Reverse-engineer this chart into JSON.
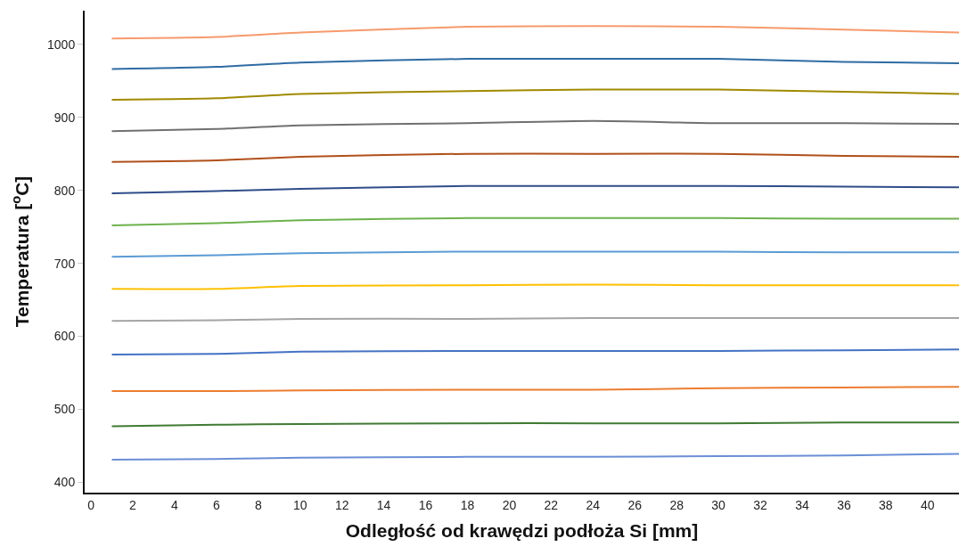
{
  "chart_data": {
    "type": "line",
    "xlabel": "Odległość od krawędzi podłoża Si [mm]",
    "ylabel": "Temperatura [$^{o}$C]",
    "x": [
      1,
      6,
      10,
      18,
      24,
      30,
      36,
      41.5
    ],
    "xlim": [
      -0.3,
      41.5
    ],
    "xticks": [
      0,
      2,
      4,
      6,
      8,
      10,
      12,
      14,
      16,
      18,
      20,
      22,
      24,
      26,
      28,
      30,
      32,
      34,
      36,
      38,
      40
    ],
    "ylim": [
      386,
      1046
    ],
    "yticks": [
      400,
      500,
      600,
      700,
      800,
      900,
      1000
    ],
    "grid": false,
    "marker": "none",
    "line_style": "solid",
    "series": [
      {
        "color": "#f79a6b",
        "values": [
          1008,
          1010,
          1016,
          1024,
          1025,
          1024,
          1020,
          1016
        ]
      },
      {
        "color": "#2e6ca4",
        "values": [
          966,
          969,
          975,
          980,
          980,
          980,
          976,
          974
        ]
      },
      {
        "color": "#a08a00",
        "values": [
          924,
          926,
          932,
          936,
          938,
          938,
          935,
          932
        ]
      },
      {
        "color": "#707070",
        "values": [
          881,
          884,
          889,
          892,
          895,
          892,
          892,
          891
        ]
      },
      {
        "color": "#b0501a",
        "values": [
          839,
          841,
          846,
          850,
          850,
          850,
          847,
          846
        ]
      },
      {
        "color": "#2f4d8a",
        "values": [
          796,
          799,
          802,
          806,
          806,
          806,
          805,
          804
        ]
      },
      {
        "color": "#6db24d",
        "values": [
          752,
          755,
          759,
          762,
          762,
          762,
          761,
          761
        ]
      },
      {
        "color": "#5b9bd5",
        "values": [
          709,
          711,
          714,
          716,
          716,
          716,
          715,
          715
        ]
      },
      {
        "color": "#ffc000",
        "values": [
          665,
          665,
          669,
          670,
          671,
          670,
          670,
          670
        ]
      },
      {
        "color": "#a5a5a5",
        "values": [
          621,
          622,
          624,
          624,
          625,
          625,
          625,
          625
        ]
      },
      {
        "color": "#4472c4",
        "values": [
          575,
          576,
          579,
          580,
          580,
          580,
          581,
          582
        ]
      },
      {
        "color": "#ed7d31",
        "values": [
          525,
          525,
          526,
          527,
          527,
          529,
          530,
          531
        ]
      },
      {
        "color": "#3f7a32",
        "values": [
          477,
          479,
          480,
          481,
          481,
          481,
          482,
          482
        ]
      },
      {
        "color": "#6a8fd6",
        "values": [
          431,
          432,
          434,
          435,
          435,
          436,
          437,
          439
        ]
      }
    ]
  }
}
